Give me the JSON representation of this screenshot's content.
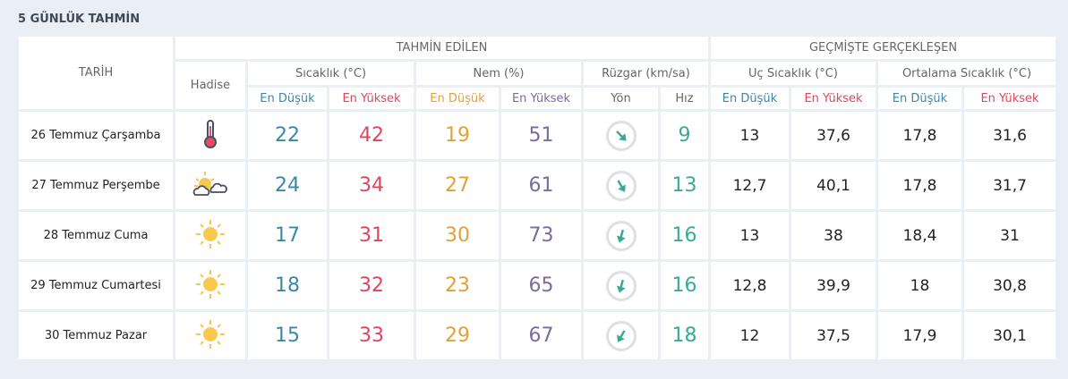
{
  "title": "5 GÜNLÜK TAHMİN",
  "headers": {
    "tarih": "TARİH",
    "forecast": "TAHMİN EDİLEN",
    "past": "GEÇMİŞTE GERÇEKLEŞEN",
    "hadise": "Hadise",
    "temp": "Sıcaklık (°C)",
    "humidity": "Nem (%)",
    "wind": "Rüzgar (km/sa)",
    "extreme": "Uç Sıcaklık (°C)",
    "average": "Ortalama Sıcaklık (°C)",
    "low": "En Düşük",
    "high": "En Yüksek",
    "dir": "Yön",
    "speed": "Hız"
  },
  "colors": {
    "low": "#3a88a8",
    "high": "#e0455e",
    "hum_low": "#e0a238",
    "hum_high": "#7a6aa0",
    "wind": "#3aaa94"
  },
  "rows": [
    {
      "date": "26 Temmuz Çarşamba",
      "icon": "thermometer-icon",
      "t_low": "22",
      "t_high": "42",
      "h_low": "19",
      "h_high": "51",
      "wind_dir_deg": 135,
      "wind_speed": "9",
      "x_low": "13",
      "x_high": "37,6",
      "a_low": "17,8",
      "a_high": "31,6"
    },
    {
      "date": "27 Temmuz Perşembe",
      "icon": "partly-cloudy-icon",
      "t_low": "24",
      "t_high": "34",
      "h_low": "27",
      "h_high": "61",
      "wind_dir_deg": 150,
      "wind_speed": "13",
      "x_low": "12,7",
      "x_high": "40,1",
      "a_low": "17,8",
      "a_high": "31,7"
    },
    {
      "date": "28 Temmuz Cuma",
      "icon": "sun-icon",
      "t_low": "17",
      "t_high": "31",
      "h_low": "30",
      "h_high": "73",
      "wind_dir_deg": 195,
      "wind_speed": "16",
      "x_low": "13",
      "x_high": "38",
      "a_low": "18,4",
      "a_high": "31"
    },
    {
      "date": "29 Temmuz Cumartesi",
      "icon": "sun-icon",
      "t_low": "18",
      "t_high": "32",
      "h_low": "23",
      "h_high": "65",
      "wind_dir_deg": 195,
      "wind_speed": "16",
      "x_low": "12,8",
      "x_high": "39,9",
      "a_low": "18",
      "a_high": "30,8"
    },
    {
      "date": "30 Temmuz Pazar",
      "icon": "sun-icon",
      "t_low": "15",
      "t_high": "33",
      "h_low": "29",
      "h_high": "67",
      "wind_dir_deg": 210,
      "wind_speed": "18",
      "x_low": "12",
      "x_high": "37,5",
      "a_low": "17,9",
      "a_high": "30,1"
    }
  ]
}
